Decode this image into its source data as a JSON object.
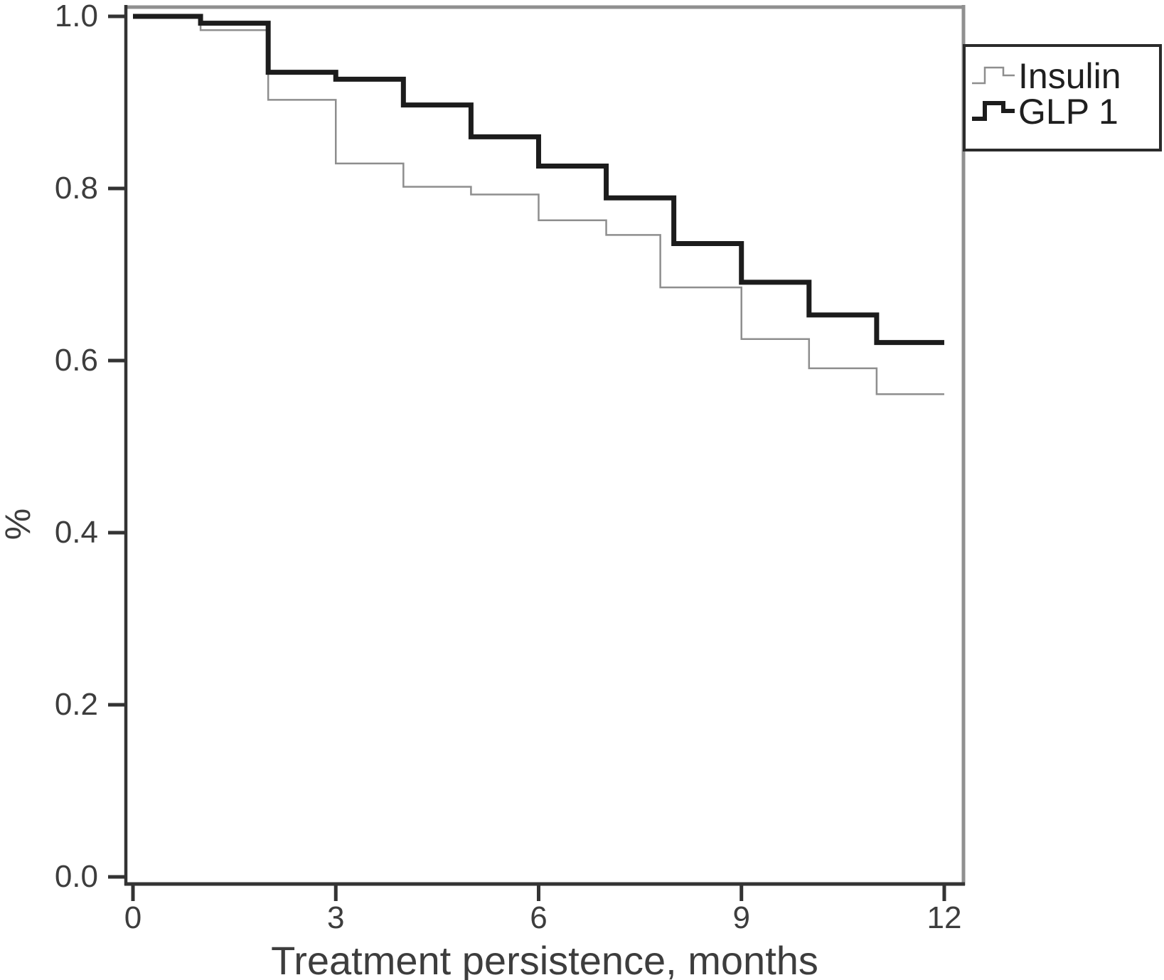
{
  "chart_data": {
    "type": "line",
    "subtype": "kaplan-meier-step",
    "title": "",
    "xlabel": "Treatment persistence, months",
    "ylabel": "%",
    "xlim": [
      0,
      12
    ],
    "ylim": [
      0.0,
      1.0
    ],
    "grid": "off",
    "legend_position": "top-right",
    "xtick_labels": [
      "0",
      "3",
      "6",
      "9",
      "12"
    ],
    "xtick_values": [
      0,
      3,
      6,
      9,
      12
    ],
    "ytick_labels": [
      "1.0",
      "0.8",
      "0.6",
      "0.4",
      "0.2",
      "0.0"
    ],
    "ytick_values": [
      1.0,
      0.8,
      0.6,
      0.4,
      0.2,
      0.0
    ],
    "colors": {
      "axis_dark": "#333333",
      "box_light": "#909090",
      "tick_text": "#3d3d3d",
      "insulin_line": "#8e8e8e",
      "glp1_line": "#1c1c1c"
    },
    "series": [
      {
        "name": "Insulin",
        "color": "#8e8e8e",
        "stroke_width": 2.5,
        "end_x": 12,
        "steps": [
          [
            0,
            1.0
          ],
          [
            1,
            0.984
          ],
          [
            2,
            0.903
          ],
          [
            3,
            0.829
          ],
          [
            4,
            0.802
          ],
          [
            5,
            0.793
          ],
          [
            6,
            0.763
          ],
          [
            7,
            0.746
          ],
          [
            7.8,
            0.685
          ],
          [
            9,
            0.625
          ],
          [
            10,
            0.591
          ],
          [
            11,
            0.561
          ]
        ]
      },
      {
        "name": "GLP 1",
        "color": "#1c1c1c",
        "stroke_width": 7,
        "end_x": 12,
        "steps": [
          [
            0,
            1.0
          ],
          [
            1,
            0.992
          ],
          [
            2,
            0.935
          ],
          [
            3,
            0.927
          ],
          [
            4,
            0.897
          ],
          [
            5,
            0.86
          ],
          [
            6,
            0.826
          ],
          [
            7,
            0.789
          ],
          [
            8,
            0.736
          ],
          [
            9,
            0.691
          ],
          [
            10,
            0.653
          ],
          [
            11,
            0.621
          ]
        ]
      }
    ]
  }
}
